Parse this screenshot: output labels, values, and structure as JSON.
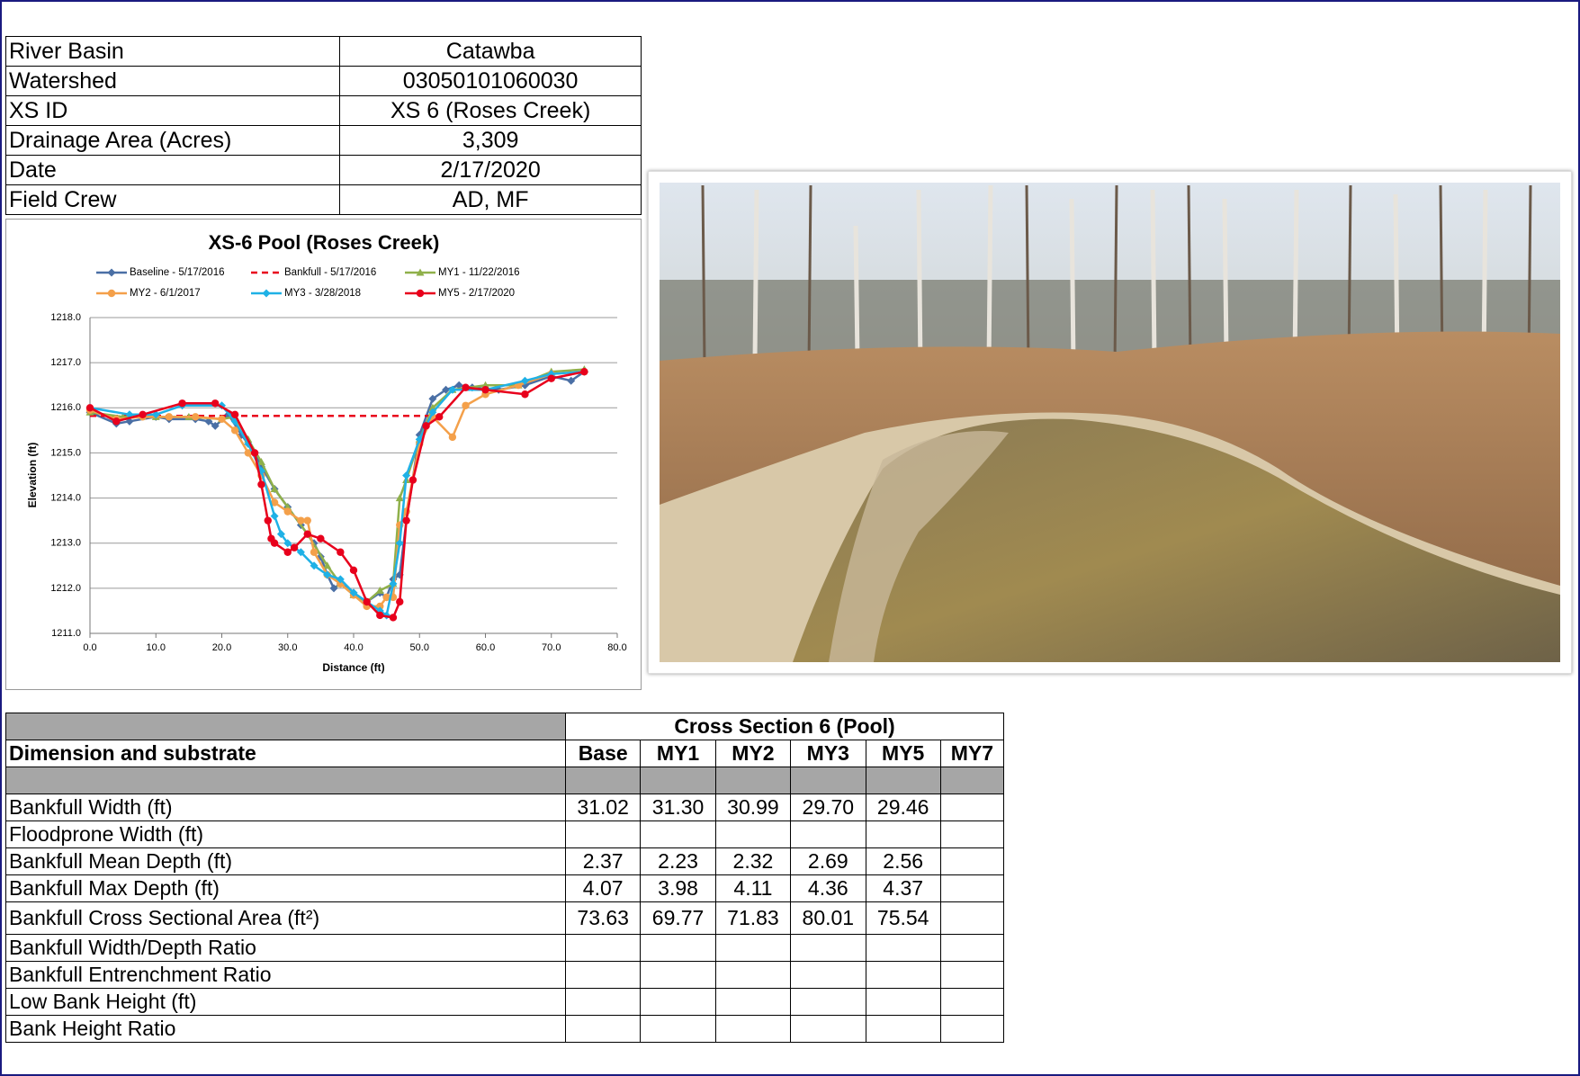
{
  "info": {
    "rows": [
      [
        "River Basin",
        "Catawba"
      ],
      [
        "Watershed",
        "03050101060030"
      ],
      [
        "XS ID",
        "XS 6 (Roses Creek)"
      ],
      [
        "Drainage Area (Acres)",
        "3,309"
      ],
      [
        "Date",
        "2/17/2020"
      ],
      [
        "Field Crew",
        "AD, MF"
      ]
    ]
  },
  "chart_data": {
    "type": "line",
    "title": "XS-6 Pool (Roses Creek)",
    "x_label": "Distance (ft)",
    "y_label": "Elevation (ft)",
    "xlim": [
      0,
      80
    ],
    "ylim": [
      1211,
      1218
    ],
    "grid": true,
    "xticks": [
      {
        "value": 0,
        "label": "0.0"
      },
      {
        "value": 10,
        "label": "10.0"
      },
      {
        "value": 20,
        "label": "20.0"
      },
      {
        "value": 30,
        "label": "30.0"
      },
      {
        "value": 40,
        "label": "40.0"
      },
      {
        "value": 50,
        "label": "50.0"
      },
      {
        "value": 60,
        "label": "60.0"
      },
      {
        "value": 70,
        "label": "70.0"
      },
      {
        "value": 80,
        "label": "80.0"
      }
    ],
    "yticks": [
      {
        "value": 1211,
        "label": "1211.0"
      },
      {
        "value": 1212,
        "label": "1212.0"
      },
      {
        "value": 1213,
        "label": "1213.0"
      },
      {
        "value": 1214,
        "label": "1214.0"
      },
      {
        "value": 1215,
        "label": "1215.0"
      },
      {
        "value": 1216,
        "label": "1216.0"
      },
      {
        "value": 1217,
        "label": "1217.0"
      },
      {
        "value": 1218,
        "label": "1218.0"
      }
    ],
    "series": [
      {
        "name": "Baseline - 5/17/2016",
        "color": "#4a6fa5",
        "marker": "diamond",
        "dashed": false,
        "x": [
          0,
          4,
          6,
          10,
          12,
          16,
          18,
          19,
          21,
          23,
          25,
          26,
          28,
          30,
          32,
          34,
          35,
          36,
          37,
          38,
          40,
          42,
          44,
          45,
          46,
          47,
          48,
          50,
          52,
          54,
          56,
          58,
          62,
          66,
          70,
          73,
          75
        ],
        "values": [
          1215.9,
          1215.65,
          1215.7,
          1215.8,
          1215.75,
          1215.75,
          1215.7,
          1215.6,
          1215.85,
          1215.4,
          1215.0,
          1214.7,
          1214.2,
          1213.8,
          1213.4,
          1213.0,
          1212.7,
          1212.3,
          1212.0,
          1212.1,
          1211.9,
          1211.7,
          1211.9,
          1211.8,
          1212.2,
          1212.3,
          1213.5,
          1215.4,
          1216.2,
          1216.4,
          1216.5,
          1216.45,
          1216.4,
          1216.5,
          1216.7,
          1216.6,
          1216.8
        ]
      },
      {
        "name": "Bankfull - 5/17/2016",
        "color": "#e8001c",
        "marker": "none",
        "dashed": true,
        "x": [
          0,
          52
        ],
        "values": [
          1215.82,
          1215.82
        ]
      },
      {
        "name": "MY1 - 11/22/2016",
        "color": "#8fb04a",
        "marker": "triangle",
        "dashed": false,
        "x": [
          0,
          5,
          10,
          15,
          20,
          22,
          24,
          26,
          28,
          30,
          33,
          36,
          38,
          40,
          42,
          44,
          46,
          47,
          48,
          50,
          52,
          55,
          60,
          65,
          70,
          75
        ],
        "values": [
          1215.9,
          1215.8,
          1215.8,
          1215.8,
          1215.75,
          1215.8,
          1215.3,
          1214.8,
          1214.2,
          1213.8,
          1213.2,
          1212.5,
          1212.1,
          1211.85,
          1211.7,
          1211.95,
          1212.1,
          1214.0,
          1214.4,
          1215.3,
          1216.0,
          1216.4,
          1216.5,
          1216.5,
          1216.8,
          1216.85
        ]
      },
      {
        "name": "MY2 - 6/1/2017",
        "color": "#f4a04a",
        "marker": "circle",
        "dashed": false,
        "x": [
          0,
          4,
          8,
          12,
          16,
          20,
          22,
          24,
          26,
          28,
          30,
          32,
          33,
          34,
          36,
          38,
          40,
          42,
          44,
          45,
          46,
          47,
          48,
          50,
          52,
          55,
          57,
          60,
          65,
          70,
          75
        ],
        "values": [
          1215.95,
          1215.75,
          1215.8,
          1215.8,
          1215.8,
          1215.75,
          1215.5,
          1215.0,
          1214.5,
          1213.9,
          1213.7,
          1213.5,
          1213.5,
          1212.8,
          1212.3,
          1212.1,
          1211.85,
          1211.6,
          1211.6,
          1211.8,
          1211.8,
          1213.4,
          1213.7,
          1215.2,
          1215.8,
          1215.35,
          1216.05,
          1216.3,
          1216.5,
          1216.75,
          1216.8
        ]
      },
      {
        "name": "MY3 - 3/28/2018",
        "color": "#1fb1e6",
        "marker": "diamond",
        "dashed": false,
        "x": [
          0,
          6,
          10,
          14,
          20,
          22,
          24,
          26,
          28,
          29,
          30,
          32,
          34,
          36,
          38,
          40,
          42,
          44,
          45,
          46,
          47,
          48,
          50,
          52,
          55,
          60,
          66,
          70,
          75
        ],
        "values": [
          1216.0,
          1215.85,
          1215.85,
          1216.05,
          1216.05,
          1215.7,
          1215.2,
          1214.6,
          1213.6,
          1213.2,
          1213.0,
          1212.8,
          1212.5,
          1212.3,
          1212.2,
          1211.9,
          1211.7,
          1211.5,
          1211.4,
          1212.1,
          1213.0,
          1214.5,
          1215.3,
          1215.9,
          1216.4,
          1216.4,
          1216.6,
          1216.75,
          1216.8
        ]
      },
      {
        "name": "MY5 - 2/17/2020",
        "color": "#e8001c",
        "marker": "circle",
        "dashed": false,
        "x": [
          0,
          4,
          8,
          14,
          19,
          22,
          25,
          26,
          27,
          27.5,
          28,
          30,
          31,
          33,
          35,
          38,
          40,
          42,
          44,
          46,
          47,
          48,
          49,
          51,
          53,
          57,
          60,
          66,
          70,
          75
        ],
        "values": [
          1216.0,
          1215.7,
          1215.85,
          1216.1,
          1216.1,
          1215.85,
          1215.0,
          1214.3,
          1213.5,
          1213.1,
          1213.0,
          1212.8,
          1212.9,
          1213.2,
          1213.1,
          1212.8,
          1212.4,
          1211.7,
          1211.4,
          1211.35,
          1211.7,
          1213.5,
          1214.4,
          1215.6,
          1215.8,
          1216.45,
          1216.4,
          1216.3,
          1216.65,
          1216.8
        ]
      }
    ]
  },
  "table": {
    "group_header": "Cross Section 6 (Pool)",
    "label_header": "Dimension and substrate",
    "columns": [
      "Base",
      "MY1",
      "MY2",
      "MY3",
      "MY5",
      "MY7"
    ],
    "rows": [
      {
        "label": "Bankfull Width (ft)",
        "cells": [
          "31.02",
          "31.30",
          "30.99",
          "29.70",
          "29.46",
          null
        ]
      },
      {
        "label": "Floodprone Width (ft)",
        "cells": [
          null,
          null,
          null,
          null,
          null,
          null
        ]
      },
      {
        "label": "Bankfull Mean Depth (ft)",
        "cells": [
          "2.37",
          "2.23",
          "2.32",
          "2.69",
          "2.56",
          null
        ]
      },
      {
        "label": "Bankfull Max Depth (ft)",
        "cells": [
          "4.07",
          "3.98",
          "4.11",
          "4.36",
          "4.37",
          null
        ]
      },
      {
        "label": "Bankfull Cross Sectional Area (ft²)",
        "cells": [
          "73.63",
          "69.77",
          "71.83",
          "80.01",
          "75.54",
          null
        ]
      },
      {
        "label": "Bankfull Width/Depth Ratio",
        "cells": [
          null,
          null,
          null,
          null,
          null,
          null
        ]
      },
      {
        "label": "Bankfull Entrenchment Ratio",
        "cells": [
          null,
          null,
          null,
          null,
          null,
          null
        ]
      },
      {
        "label": "Low Bank Height (ft)",
        "cells": [
          null,
          null,
          null,
          null,
          null,
          null
        ]
      },
      {
        "label": "Bank Height Ratio",
        "cells": [
          null,
          null,
          null,
          null,
          null,
          null
        ]
      }
    ]
  }
}
